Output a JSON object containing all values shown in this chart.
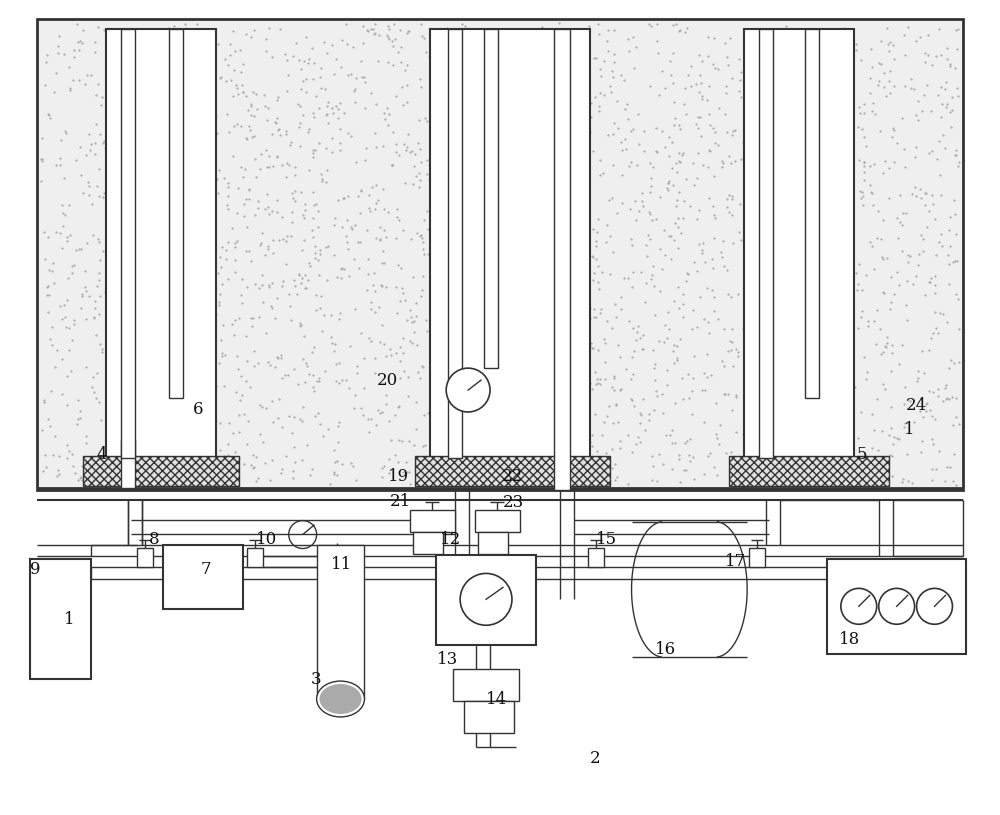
{
  "bg_color": "#ffffff",
  "line_color": "#333333",
  "rock_color": "#efefef",
  "fig_width": 10.0,
  "fig_height": 8.15,
  "dpi": 100,
  "labels": [
    [
      "1",
      62,
      620
    ],
    [
      "1",
      905,
      430
    ],
    [
      "2",
      590,
      760
    ],
    [
      "3",
      310,
      680
    ],
    [
      "4",
      95,
      455
    ],
    [
      "5",
      858,
      455
    ],
    [
      "6",
      192,
      410
    ],
    [
      "7",
      200,
      570
    ],
    [
      "8",
      148,
      540
    ],
    [
      "9",
      28,
      570
    ],
    [
      "10",
      255,
      540
    ],
    [
      "11",
      330,
      565
    ],
    [
      "12",
      440,
      540
    ],
    [
      "13",
      437,
      660
    ],
    [
      "14",
      486,
      700
    ],
    [
      "15",
      596,
      540
    ],
    [
      "16",
      655,
      650
    ],
    [
      "17",
      726,
      562
    ],
    [
      "18",
      840,
      640
    ],
    [
      "19",
      388,
      477
    ],
    [
      "20",
      376,
      380
    ],
    [
      "21",
      389,
      502
    ],
    [
      "22",
      502,
      477
    ],
    [
      "23",
      503,
      503
    ],
    [
      "24",
      907,
      405
    ]
  ]
}
